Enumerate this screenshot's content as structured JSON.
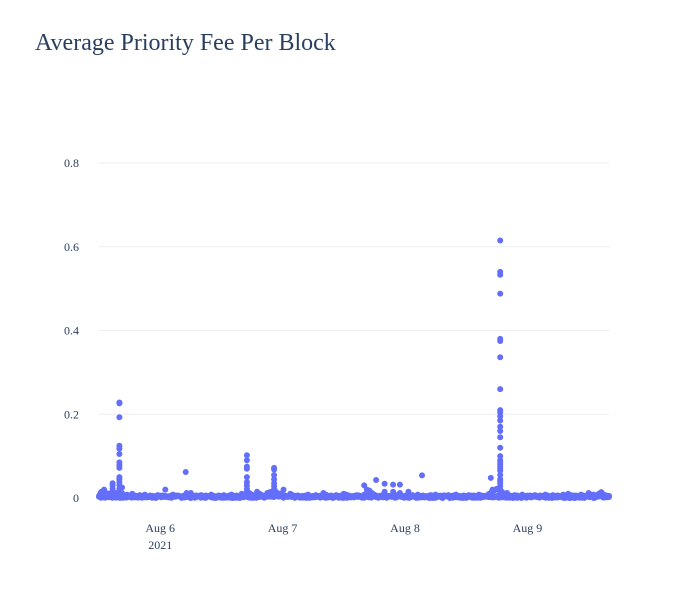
{
  "title": "Average Priority Fee Per Block",
  "colors": {
    "marker": "#636efa",
    "grid": "#ebedf2",
    "zeroline": "#eef0f3",
    "text": "#2a3f5f"
  },
  "chart_data": {
    "type": "scatter",
    "title": "Average Priority Fee Per Block",
    "xlabel": "",
    "ylabel": "",
    "xlim": [
      "2021-08-05T12:00",
      "2021-08-09T16:00"
    ],
    "ylim": [
      0,
      0.8
    ],
    "grid": true,
    "legend": "none",
    "x_ticks": [
      {
        "value": "2021-08-06",
        "label": "Aug 6",
        "sublabel": "2021"
      },
      {
        "value": "2021-08-07",
        "label": "Aug 7",
        "sublabel": ""
      },
      {
        "value": "2021-08-08",
        "label": "Aug 8",
        "sublabel": ""
      },
      {
        "value": "2021-08-09",
        "label": "Aug 9",
        "sublabel": ""
      }
    ],
    "y_ticks": [
      {
        "value": 0,
        "label": "0"
      },
      {
        "value": 0.2,
        "label": "0.2"
      },
      {
        "value": 0.4,
        "label": "0.4"
      },
      {
        "value": 0.6,
        "label": "0.6"
      },
      {
        "value": 0.8,
        "label": "0.8"
      }
    ],
    "series": [
      {
        "x": [
          "2021-08-05T12:00",
          "2021-08-05T12:10",
          "2021-08-05T12:20",
          "2021-08-05T12:30",
          "2021-08-05T12:40",
          "2021-08-05T12:50",
          "2021-08-05T13:00",
          "2021-08-05T13:10",
          "2021-08-05T13:20",
          "2021-08-05T13:30",
          "2021-08-05T13:40",
          "2021-08-05T13:50",
          "2021-08-05T14:00",
          "2021-08-05T14:10",
          "2021-08-05T14:20",
          "2021-08-05T14:40",
          "2021-08-05T14:40",
          "2021-08-05T14:40",
          "2021-08-05T14:40",
          "2021-08-05T14:40",
          "2021-08-05T15:20",
          "2021-08-05T15:30",
          "2021-08-05T15:40",
          "2021-08-05T15:50",
          "2021-08-05T16:00",
          "2021-08-05T16:00",
          "2021-08-05T16:00",
          "2021-08-05T16:00",
          "2021-08-05T16:00",
          "2021-08-05T16:00",
          "2021-08-05T16:00",
          "2021-08-05T16:00",
          "2021-08-05T16:00",
          "2021-08-05T16:00",
          "2021-08-05T16:00",
          "2021-08-05T16:00",
          "2021-08-05T16:00",
          "2021-08-05T16:00",
          "2021-08-05T16:00",
          "2021-08-05T16:30",
          "2021-08-05T16:30",
          "2021-08-05T17:00",
          "2021-08-05T17:30",
          "2021-08-05T18:00",
          "2021-08-05T18:30",
          "2021-08-05T19:00",
          "2021-08-05T19:30",
          "2021-08-05T20:00",
          "2021-08-05T20:30",
          "2021-08-05T21:00",
          "2021-08-05T21:30",
          "2021-08-05T22:00",
          "2021-08-05T22:30",
          "2021-08-05T23:00",
          "2021-08-05T23:30",
          "2021-08-06T00:00",
          "2021-08-06T00:30",
          "2021-08-06T01:00",
          "2021-08-06T01:30",
          "2021-08-06T02:00",
          "2021-08-06T02:30",
          "2021-08-06T03:00",
          "2021-08-06T03:30",
          "2021-08-06T04:00",
          "2021-08-06T04:30",
          "2021-08-06T05:00",
          "2021-08-06T05:30",
          "2021-08-06T06:00",
          "2021-08-06T06:30",
          "2021-08-06T07:00",
          "2021-08-06T07:30",
          "2021-08-06T08:00",
          "2021-08-06T08:30",
          "2021-08-06T09:00",
          "2021-08-06T09:30",
          "2021-08-06T10:00",
          "2021-08-06T10:30",
          "2021-08-06T11:00",
          "2021-08-06T11:30",
          "2021-08-06T12:00",
          "2021-08-06T12:30",
          "2021-08-06T13:00",
          "2021-08-06T13:30",
          "2021-08-06T14:00",
          "2021-08-06T14:30",
          "2021-08-06T15:00",
          "2021-08-06T15:30",
          "2021-08-06T16:00",
          "2021-08-06T16:30",
          "2021-08-06T17:00",
          "2021-08-06T05:00",
          "2021-08-06T05:10",
          "2021-08-06T17:00",
          "2021-08-06T17:00",
          "2021-08-06T17:00",
          "2021-08-06T17:00",
          "2021-08-06T17:00",
          "2021-08-06T17:00",
          "2021-08-06T17:00",
          "2021-08-06T17:00",
          "2021-08-06T17:00",
          "2021-08-06T17:00",
          "2021-08-06T17:30",
          "2021-08-06T18:00",
          "2021-08-06T18:30",
          "2021-08-06T19:00",
          "2021-08-06T19:30",
          "2021-08-06T20:00",
          "2021-08-06T20:30",
          "2021-08-06T21:00",
          "2021-08-06T21:30",
          "2021-08-06T22:00",
          "2021-08-06T22:30",
          "2021-08-06T23:00",
          "2021-08-06T23:30",
          "2021-08-07T00:00",
          "2021-08-07T00:30",
          "2021-08-07T01:00",
          "2021-08-07T01:30",
          "2021-08-07T02:00",
          "2021-08-07T02:30",
          "2021-08-07T03:00",
          "2021-08-07T03:30",
          "2021-08-06T22:20",
          "2021-08-06T22:20",
          "2021-08-06T22:20",
          "2021-08-06T22:20",
          "2021-08-06T22:20",
          "2021-08-06T22:20",
          "2021-08-06T22:20",
          "2021-08-06T22:20",
          "2021-08-07T00:10",
          "2021-08-07T04:00",
          "2021-08-07T04:30",
          "2021-08-07T05:00",
          "2021-08-07T05:30",
          "2021-08-07T06:00",
          "2021-08-07T06:30",
          "2021-08-07T07:00",
          "2021-08-07T07:30",
          "2021-08-07T08:00",
          "2021-08-07T08:30",
          "2021-08-07T09:00",
          "2021-08-07T09:30",
          "2021-08-07T10:00",
          "2021-08-07T10:30",
          "2021-08-07T11:00",
          "2021-08-07T11:30",
          "2021-08-07T12:00",
          "2021-08-07T12:30",
          "2021-08-07T13:00",
          "2021-08-07T13:30",
          "2021-08-07T14:00",
          "2021-08-07T14:30",
          "2021-08-07T15:00",
          "2021-08-07T15:30",
          "2021-08-07T16:00",
          "2021-08-07T16:30",
          "2021-08-07T17:00",
          "2021-08-07T17:30",
          "2021-08-07T18:00",
          "2021-08-07T18:30",
          "2021-08-07T19:00",
          "2021-08-07T19:30",
          "2021-08-07T20:00",
          "2021-08-07T20:30",
          "2021-08-07T21:00",
          "2021-08-07T21:30",
          "2021-08-07T22:00",
          "2021-08-07T22:30",
          "2021-08-07T23:00",
          "2021-08-07T23:30",
          "2021-08-07T16:00",
          "2021-08-07T16:30",
          "2021-08-07T17:00",
          "2021-08-07T18:20",
          "2021-08-07T20:00",
          "2021-08-07T20:00",
          "2021-08-07T21:40",
          "2021-08-07T21:40",
          "2021-08-07T23:00",
          "2021-08-07T23:00",
          "2021-08-08T00:40",
          "2021-08-08T03:20",
          "2021-08-08T00:00",
          "2021-08-08T00:30",
          "2021-08-08T01:00",
          "2021-08-08T01:30",
          "2021-08-08T02:00",
          "2021-08-08T02:30",
          "2021-08-08T03:00",
          "2021-08-08T03:30",
          "2021-08-08T04:00",
          "2021-08-08T04:30",
          "2021-08-08T05:00",
          "2021-08-08T05:30",
          "2021-08-08T06:00",
          "2021-08-08T06:30",
          "2021-08-08T07:00",
          "2021-08-08T07:30",
          "2021-08-08T08:00",
          "2021-08-08T08:30",
          "2021-08-08T09:00",
          "2021-08-08T09:30",
          "2021-08-08T10:00",
          "2021-08-08T10:30",
          "2021-08-08T11:00",
          "2021-08-08T11:30",
          "2021-08-08T12:00",
          "2021-08-08T12:30",
          "2021-08-08T13:00",
          "2021-08-08T13:30",
          "2021-08-08T14:00",
          "2021-08-08T14:30",
          "2021-08-08T15:00",
          "2021-08-08T15:30",
          "2021-08-08T16:50",
          "2021-08-08T17:10",
          "2021-08-08T18:40",
          "2021-08-08T18:40",
          "2021-08-08T18:40",
          "2021-08-08T18:40",
          "2021-08-08T18:40",
          "2021-08-08T18:40",
          "2021-08-08T18:40",
          "2021-08-08T18:40",
          "2021-08-08T18:40",
          "2021-08-08T18:40",
          "2021-08-08T18:40",
          "2021-08-08T18:40",
          "2021-08-08T18:40",
          "2021-08-08T18:40",
          "2021-08-08T18:40",
          "2021-08-08T18:40",
          "2021-08-08T18:40",
          "2021-08-08T18:40",
          "2021-08-08T18:40",
          "2021-08-08T18:40",
          "2021-08-08T18:40",
          "2021-08-08T18:40",
          "2021-08-08T18:40",
          "2021-08-08T18:40",
          "2021-08-08T18:40",
          "2021-08-08T18:40",
          "2021-08-08T18:40",
          "2021-08-08T18:40",
          "2021-08-08T18:40",
          "2021-08-08T18:40",
          "2021-08-08T18:40",
          "2021-08-08T16:00",
          "2021-08-08T16:30",
          "2021-08-08T17:00",
          "2021-08-08T17:30",
          "2021-08-08T18:00",
          "2021-08-08T18:20",
          "2021-08-08T19:00",
          "2021-08-08T19:30",
          "2021-08-08T20:00",
          "2021-08-08T20:30",
          "2021-08-08T21:00",
          "2021-08-08T21:30",
          "2021-08-08T22:00",
          "2021-08-08T22:30",
          "2021-08-08T23:00",
          "2021-08-08T23:30",
          "2021-08-09T00:00",
          "2021-08-09T00:30",
          "2021-08-09T01:00",
          "2021-08-09T01:30",
          "2021-08-09T02:00",
          "2021-08-09T02:30",
          "2021-08-09T03:00",
          "2021-08-09T03:30",
          "2021-08-09T04:00",
          "2021-08-09T04:30",
          "2021-08-09T05:00",
          "2021-08-09T05:30",
          "2021-08-09T06:00",
          "2021-08-09T06:30",
          "2021-08-09T07:00",
          "2021-08-09T07:30",
          "2021-08-09T08:00",
          "2021-08-09T08:30",
          "2021-08-09T09:00",
          "2021-08-09T09:30",
          "2021-08-09T10:00",
          "2021-08-09T10:30",
          "2021-08-09T11:00",
          "2021-08-09T11:30",
          "2021-08-09T12:00",
          "2021-08-09T12:30",
          "2021-08-09T13:00",
          "2021-08-09T13:30",
          "2021-08-09T14:00",
          "2021-08-09T14:30",
          "2021-08-09T15:00",
          "2021-08-09T15:30",
          "2021-08-09T16:00",
          "2021-08-08T20:00",
          "2021-08-09T08:00",
          "2021-08-09T13:00",
          "2021-08-09T14:30"
        ],
        "y": [
          0.004,
          0.008,
          0.012,
          0.015,
          0.01,
          0.006,
          0.02,
          0.005,
          0.009,
          0.003,
          0.007,
          0.011,
          0.006,
          0.004,
          0.008,
          0.035,
          0.03,
          0.022,
          0.015,
          0.01,
          0.012,
          0.008,
          0.006,
          0.01,
          0.228,
          0.226,
          0.193,
          0.125,
          0.118,
          0.105,
          0.085,
          0.078,
          0.072,
          0.05,
          0.045,
          0.038,
          0.03,
          0.022,
          0.015,
          0.025,
          0.012,
          0.006,
          0.008,
          0.004,
          0.01,
          0.006,
          0.005,
          0.007,
          0.004,
          0.008,
          0.003,
          0.006,
          0.005,
          0.004,
          0.007,
          0.004,
          0.006,
          0.02,
          0.004,
          0.005,
          0.008,
          0.003,
          0.006,
          0.004,
          0.005,
          0.008,
          0.004,
          0.012,
          0.005,
          0.006,
          0.004,
          0.007,
          0.005,
          0.006,
          0.004,
          0.008,
          0.005,
          0.004,
          0.006,
          0.005,
          0.007,
          0.004,
          0.006,
          0.008,
          0.005,
          0.006,
          0.004,
          0.01,
          0.006,
          0.005,
          0.062,
          0.012,
          0.102,
          0.09,
          0.075,
          0.07,
          0.05,
          0.038,
          0.03,
          0.022,
          0.015,
          0.01,
          0.012,
          0.008,
          0.006,
          0.015,
          0.01,
          0.007,
          0.005,
          0.012,
          0.014,
          0.016,
          0.018,
          0.012,
          0.01,
          0.008,
          0.006,
          0.004,
          0.01,
          0.007,
          0.005,
          0.006,
          0.004,
          0.072,
          0.068,
          0.055,
          0.045,
          0.035,
          0.028,
          0.02,
          0.012,
          0.02,
          0.005,
          0.006,
          0.008,
          0.004,
          0.005,
          0.007,
          0.004,
          0.006,
          0.012,
          0.008,
          0.005,
          0.006,
          0.004,
          0.007,
          0.005,
          0.006,
          0.01,
          0.008,
          0.006,
          0.004,
          0.005,
          0.007,
          0.006,
          0.004,
          0.008,
          0.005,
          0.006,
          0.012,
          0.008,
          0.005,
          0.004,
          0.006,
          0.007,
          0.005,
          0.004,
          0.006,
          0.008,
          0.005,
          0.006,
          0.004,
          0.03,
          0.02,
          0.018,
          0.043,
          0.034,
          0.015,
          0.032,
          0.015,
          0.032,
          0.012,
          0.015,
          0.054,
          0.004,
          0.006,
          0.005,
          0.007,
          0.004,
          0.008,
          0.005,
          0.006,
          0.004,
          0.005,
          0.007,
          0.006,
          0.008,
          0.004,
          0.005,
          0.006,
          0.004,
          0.007,
          0.005,
          0.006,
          0.008,
          0.005,
          0.004,
          0.006,
          0.005,
          0.007,
          0.004,
          0.006,
          0.005,
          0.008,
          0.006,
          0.005,
          0.048,
          0.02,
          0.615,
          0.54,
          0.533,
          0.488,
          0.38,
          0.375,
          0.336,
          0.26,
          0.21,
          0.205,
          0.195,
          0.185,
          0.17,
          0.16,
          0.145,
          0.12,
          0.1,
          0.09,
          0.085,
          0.08,
          0.075,
          0.07,
          0.065,
          0.055,
          0.045,
          0.04,
          0.035,
          0.028,
          0.02,
          0.015,
          0.01,
          0.006,
          0.01,
          0.015,
          0.018,
          0.022,
          0.02,
          0.015,
          0.01,
          0.008,
          0.006,
          0.005,
          0.007,
          0.006,
          0.004,
          0.008,
          0.005,
          0.004,
          0.006,
          0.005,
          0.007,
          0.004,
          0.006,
          0.005,
          0.008,
          0.006,
          0.004,
          0.007,
          0.005,
          0.006,
          0.004,
          0.008,
          0.006,
          0.005,
          0.007,
          0.004,
          0.006,
          0.005,
          0.008,
          0.006,
          0.004,
          0.012,
          0.008,
          0.006,
          0.005,
          0.01,
          0.012,
          0.008,
          0.006,
          0.005,
          0.012,
          0.01,
          0.008,
          0.014
        ]
      }
    ]
  }
}
